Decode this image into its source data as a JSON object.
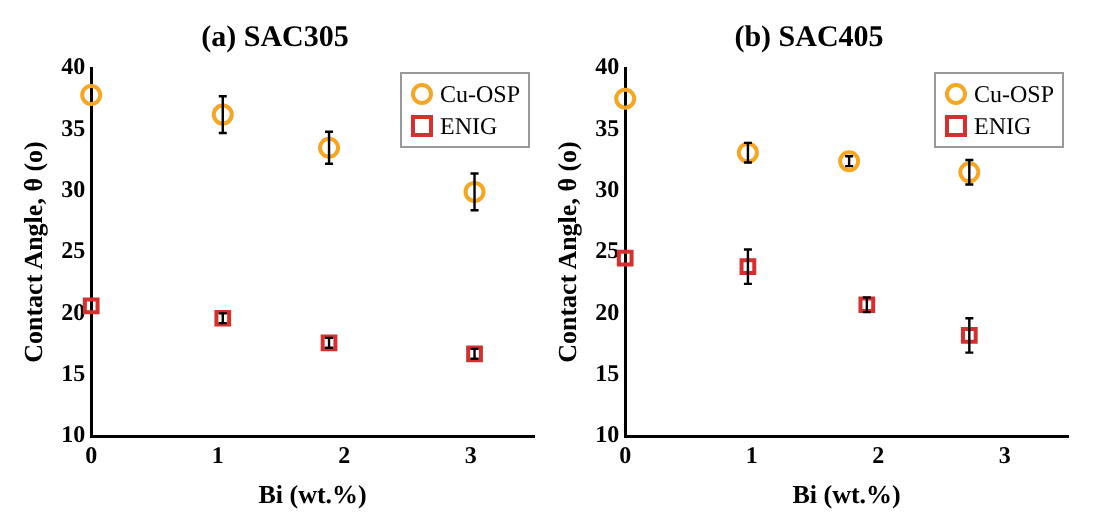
{
  "chart_data": [
    {
      "type": "scatter",
      "title": "(a) SAC305",
      "xlabel": "Bi (wt.%)",
      "ylabel": "Contact Angle, θ (o)",
      "xlim": [
        0,
        3.5
      ],
      "xticks": [
        0,
        1,
        2,
        3
      ],
      "ylim": [
        10,
        40
      ],
      "yticks": [
        10,
        15,
        20,
        25,
        30,
        35,
        40
      ],
      "grid": false,
      "legend": "top right",
      "series": [
        {
          "name": "Cu-OSP",
          "color": "#f5a623",
          "marker": "circle",
          "x": [
            0,
            1.04,
            1.88,
            3.03
          ],
          "values": [
            37.8,
            36.2,
            33.5,
            29.9
          ],
          "errors": [
            null,
            1.5,
            1.3,
            1.5
          ]
        },
        {
          "name": "ENIG",
          "color": "#d62f2f",
          "marker": "square",
          "x": [
            0,
            1.04,
            1.88,
            3.03
          ],
          "values": [
            20.6,
            19.6,
            17.6,
            16.7
          ],
          "errors": [
            null,
            0.4,
            0.4,
            0.4
          ]
        }
      ]
    },
    {
      "type": "scatter",
      "title": "(b) SAC405",
      "xlabel": "Bi (wt.%)",
      "ylabel": "Contact Angle, θ (o)",
      "xlim": [
        0,
        3.5
      ],
      "xticks": [
        0,
        1,
        2,
        3
      ],
      "ylim": [
        10,
        40
      ],
      "yticks": [
        10,
        15,
        20,
        25,
        30,
        35,
        40
      ],
      "grid": false,
      "legend": "top right",
      "series": [
        {
          "name": "Cu-OSP",
          "color": "#f5a623",
          "marker": "circle",
          "x": [
            0,
            0.97,
            1.77,
            2.72
          ],
          "values": [
            37.5,
            33.1,
            32.4,
            31.5
          ],
          "errors": [
            null,
            0.8,
            0.4,
            1.0
          ]
        },
        {
          "name": "ENIG",
          "color": "#d62f2f",
          "marker": "square",
          "x": [
            0,
            0.97,
            1.91,
            2.72
          ],
          "values": [
            24.5,
            23.8,
            20.7,
            18.2
          ],
          "errors": [
            null,
            1.4,
            0.6,
            1.4
          ]
        }
      ]
    }
  ]
}
